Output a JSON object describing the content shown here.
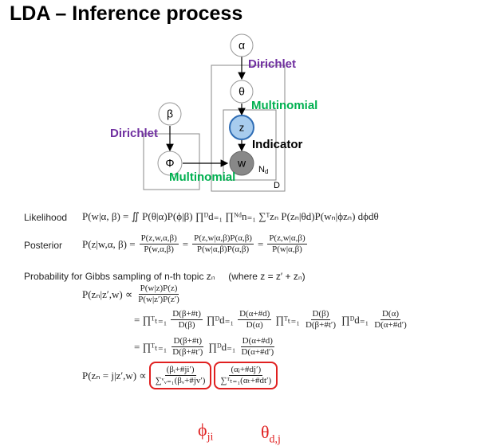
{
  "title": "LDA – Inference process",
  "diagram": {
    "nodes": {
      "alpha": "α",
      "theta": "θ",
      "z": "z",
      "w": "w",
      "beta": "β",
      "phi": "Φ"
    },
    "labels": {
      "dirichlet_theta": "Dirichlet",
      "multinomial_z": "Multinomial",
      "dirichlet_phi": "Dirichlet",
      "indicator": "Indicator",
      "multinomial_w": "Multinomial"
    },
    "plates": {
      "n": "N",
      "n_sub": "d",
      "d": "D"
    }
  },
  "likelihood": {
    "label": "Likelihood",
    "parts": [
      "P(w|α, β) = ∬ P(θ|α)P(ϕ|β) ∏ᴰd₌₁ ∏ᴺᵈn₌₁ ∑ᵀzₙ P(zₙ|θd)P(wₙ|ϕzₙ) dϕdθ"
    ]
  },
  "posterior": {
    "label": "Posterior",
    "parts": [
      "P(z|w,α, β) =",
      {
        "num": "P(z,w,α,β)",
        "den": "P(w,α,β)"
      },
      "=",
      {
        "num": "P(z,w|α,β)P(α,β)",
        "den": "P(w|α,β)P(α,β)"
      },
      "=",
      {
        "num": "P(z,w|α,β)",
        "den": "P(w|α,β)"
      }
    ]
  },
  "gibbs": {
    "heading": "Probability for Gibbs sampling of n-th topic zₙ",
    "where": "(where z = z′ + zₙ)",
    "lines": [
      [
        "P(zₙ|z′,w) ∝",
        {
          "num": "P(w|z)P(z)",
          "den": "P(w|z′)P(z′)"
        }
      ],
      [
        "= ∏ᵀₜ₌₁",
        {
          "num": "D(β+#t)",
          "den": "D(β)"
        },
        "∏ᴰd₌₁",
        {
          "num": "D(α+#d)",
          "den": "D(α)"
        },
        "∏ᵀₜ₌₁",
        {
          "num": "D(β)",
          "den": "D(β+#t′)"
        },
        "∏ᴰd₌₁",
        {
          "num": "D(α)",
          "den": "D(α+#d′)"
        }
      ],
      [
        "= ∏ᵀₜ₌₁",
        {
          "num": "D(β+#t)",
          "den": "D(β+#t′)"
        },
        "∏ᴰd₌₁",
        {
          "num": "D(α+#d)",
          "den": "D(α+#d′)"
        }
      ],
      [
        "P(zₙ = j|z′,w) ∝",
        {
          "num": "(βᵢ+#ji′)",
          "den": "∑ᵛᵥ₌₁(βᵥ+#jv′)"
        },
        {
          "num": "(αⱼ+#dj′)",
          "den": "∑ᵀₜ₌₁(αₜ+#dt′)"
        }
      ]
    ]
  },
  "annotations": {
    "phi": {
      "symbol": "ϕ",
      "sub": "ji"
    },
    "theta": {
      "symbol": "θ",
      "sub": "d,j"
    }
  }
}
